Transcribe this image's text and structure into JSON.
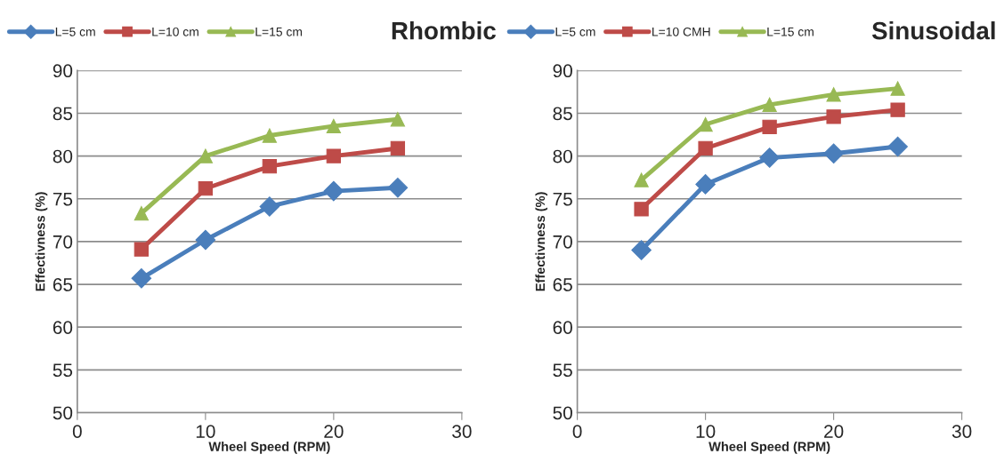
{
  "chart_data": [
    {
      "type": "line",
      "title": "Rhombic",
      "xlabel": "Wheel Speed (RPM)",
      "ylabel": "Effectivness (%)",
      "x": [
        5,
        10,
        15,
        20,
        25
      ],
      "xlim": [
        0,
        30
      ],
      "xticks": [
        0,
        10,
        20,
        30
      ],
      "ylim": [
        50,
        90
      ],
      "yticks": [
        50,
        55,
        60,
        65,
        70,
        75,
        80,
        85,
        90
      ],
      "grid": "y",
      "legend": "top",
      "line_style": "solid",
      "series": [
        {
          "name": "L=5 cm",
          "color": "#4a7ebb",
          "marker": "diamond",
          "values": [
            65.7,
            70.2,
            74.1,
            75.9,
            76.3
          ]
        },
        {
          "name": "L=10 cm",
          "color": "#be4b48",
          "marker": "square",
          "values": [
            69.1,
            76.2,
            78.8,
            80.0,
            80.9
          ]
        },
        {
          "name": "L=15 cm",
          "color": "#98b954",
          "marker": "triangle",
          "values": [
            73.3,
            80.0,
            82.4,
            83.5,
            84.3
          ]
        }
      ]
    },
    {
      "type": "line",
      "title": "Sinusoidal",
      "xlabel": "Wheel Speed (RPM)",
      "ylabel": "Effectivness (%)",
      "x": [
        5,
        10,
        15,
        20,
        25
      ],
      "xlim": [
        0,
        30
      ],
      "xticks": [
        0,
        10,
        20,
        30
      ],
      "ylim": [
        50,
        90
      ],
      "yticks": [
        50,
        55,
        60,
        65,
        70,
        75,
        80,
        85,
        90
      ],
      "grid": "y",
      "legend": "top",
      "line_style": "solid",
      "series": [
        {
          "name": "L=5 cm",
          "color": "#4a7ebb",
          "marker": "diamond",
          "values": [
            69.0,
            76.7,
            79.8,
            80.3,
            81.1
          ]
        },
        {
          "name": "L=10 CMH",
          "color": "#be4b48",
          "marker": "square",
          "values": [
            73.8,
            80.9,
            83.4,
            84.6,
            85.4
          ]
        },
        {
          "name": "L=15 cm",
          "color": "#98b954",
          "marker": "triangle",
          "values": [
            77.2,
            83.7,
            86.0,
            87.2,
            87.9
          ]
        }
      ]
    }
  ]
}
